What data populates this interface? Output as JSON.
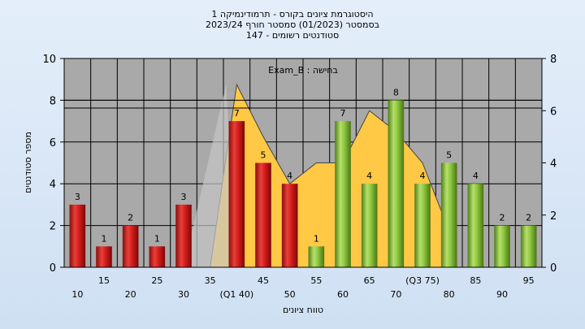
{
  "title_lines": [
    "היסטוגרמת ציונים בקורס - תרמודינמיקה 1",
    "בסמסטר  (01/2023)  סמסטר חורף  2023/24",
    "147 - סטודנטים רשומים"
  ],
  "colors": {
    "fail_bar": "#e02020",
    "pass_bar": "#8cc63f",
    "area": "#ffc845",
    "plot_bg": "#a9a9a9"
  },
  "chart_data": {
    "type": "bar",
    "annotation": "Exam_B : בחישה",
    "xlabel": "טווח ציונים",
    "ylabel": "מספר סטודנטים",
    "ylim": [
      0,
      10
    ],
    "y2lim": [
      0,
      8
    ],
    "y_ticks": [
      "0",
      "2",
      "4",
      "6",
      "8",
      "10"
    ],
    "y2_ticks": [
      "0",
      "2",
      "4",
      "6",
      "8"
    ],
    "x_tick_labels": [
      {
        "label": "10",
        "row": 2
      },
      {
        "label": "15",
        "row": 1
      },
      {
        "label": "20",
        "row": 2
      },
      {
        "label": "25",
        "row": 1
      },
      {
        "label": "30",
        "row": 2
      },
      {
        "label": "35",
        "row": 1
      },
      {
        "label": "(Q1 40)",
        "row": 2
      },
      {
        "label": "45",
        "row": 1
      },
      {
        "label": "50",
        "row": 2
      },
      {
        "label": "55",
        "row": 1
      },
      {
        "label": "60",
        "row": 2
      },
      {
        "label": "65",
        "row": 1
      },
      {
        "label": "70",
        "row": 2
      },
      {
        "label": "(Q3 75)",
        "row": 1
      },
      {
        "label": "80",
        "row": 2
      },
      {
        "label": "85",
        "row": 1
      },
      {
        "label": "90",
        "row": 2
      },
      {
        "label": "95",
        "row": 1
      }
    ],
    "categories": [
      10,
      15,
      20,
      25,
      30,
      35,
      40,
      45,
      50,
      55,
      60,
      65,
      70,
      75,
      80,
      85,
      90,
      95
    ],
    "values": [
      3,
      1,
      2,
      1,
      3,
      0,
      7,
      5,
      4,
      1,
      7,
      4,
      8,
      4,
      5,
      4,
      2,
      2
    ],
    "value_labels": [
      "3",
      "1",
      "2",
      "1",
      "3",
      "",
      "7",
      "5",
      "4",
      "1",
      "7",
      "4",
      "8",
      "4",
      "5",
      "4",
      "2",
      "2"
    ],
    "pass_threshold": 55,
    "area_series": {
      "x": [
        35,
        40,
        45,
        50,
        55,
        60,
        65,
        70,
        75,
        80
      ],
      "y": [
        0,
        7,
        5,
        3.2,
        4,
        4,
        6,
        5.2,
        4,
        1.4
      ]
    },
    "reference_lines_y2": [
      6.1,
      6.4
    ]
  }
}
